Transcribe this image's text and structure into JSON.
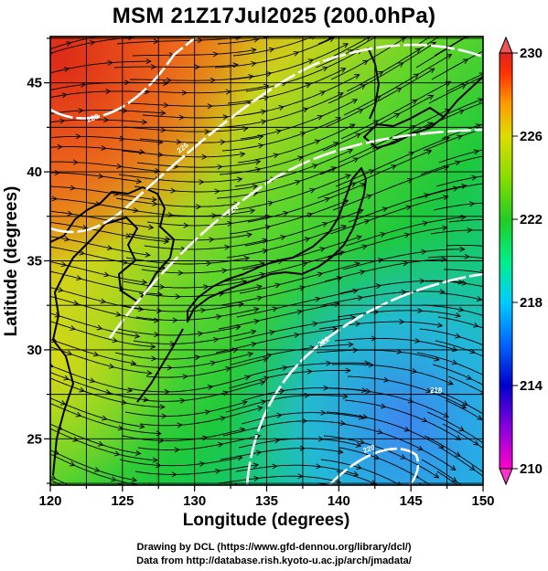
{
  "title": "MSM 21Z17Jul2025 (200.0hPa)",
  "x_axis": {
    "label": "Longitude (degrees)",
    "range": [
      120,
      150
    ],
    "ticks": [
      "120",
      "125",
      "130",
      "135",
      "140",
      "145",
      "150"
    ]
  },
  "y_axis": {
    "label": "Latitude  (degrees)",
    "range": [
      22.4,
      47.6
    ],
    "ticks": [
      "25",
      "30",
      "35",
      "40",
      "45"
    ]
  },
  "colorbar": {
    "range": [
      210,
      230
    ],
    "tick_labels": [
      "230",
      "226",
      "222",
      "218",
      "214",
      "210"
    ],
    "colors": [
      "#ff00cc",
      "#8800dd",
      "#0000cc",
      "#0066ff",
      "#00ccff",
      "#00ee88",
      "#22cc22",
      "#88dd00",
      "#dddd00",
      "#ff9900",
      "#ff3300",
      "#dd2222"
    ]
  },
  "contours": {
    "color": "#ffffff",
    "labels": [
      "228",
      "226",
      "224",
      "222",
      "220",
      "218"
    ]
  },
  "credits": {
    "line1": "Drawing by DCL (https://www.gfd-dennou.org/library/dcl/)",
    "line2": "Data from http://database.rish.kyoto-u.ac.jp/arch/jmadata/"
  }
}
